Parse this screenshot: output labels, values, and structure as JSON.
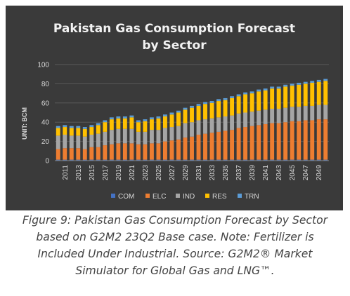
{
  "chart_data": {
    "type": "bar",
    "stacked": true,
    "title_lines": [
      "Pakistan Gas Consumption Forecast",
      "by Sector"
    ],
    "ylabel": "UNIT: BCM",
    "xlabel": "",
    "ylim": [
      0,
      100
    ],
    "yticks": [
      0,
      20,
      40,
      60,
      80,
      100
    ],
    "grid": true,
    "legend_position": "bottom",
    "categories": [
      "2010",
      "2011",
      "2012",
      "2013",
      "2014",
      "2015",
      "2016",
      "2017",
      "2018",
      "2019",
      "2020",
      "2021",
      "2022",
      "2023",
      "2024",
      "2025",
      "2026",
      "2027",
      "2028",
      "2029",
      "2030",
      "2031",
      "2032",
      "2033",
      "2034",
      "2035",
      "2036",
      "2037",
      "2038",
      "2039",
      "2040",
      "2041",
      "2042",
      "2043",
      "2044",
      "2045",
      "2046",
      "2047",
      "2048",
      "2049",
      "2050"
    ],
    "x_tick_labels": [
      "2011",
      "2013",
      "2015",
      "2017",
      "2019",
      "2021",
      "2023",
      "2025",
      "2027",
      "2029",
      "2031",
      "2033",
      "2035",
      "2037",
      "2039",
      "2041",
      "2043",
      "2045",
      "2047",
      "2049"
    ],
    "series": [
      {
        "name": "COM",
        "color": "#4472c4",
        "values": [
          1,
          1,
          1,
          1,
          1,
          1,
          1,
          1,
          1,
          1,
          1,
          1,
          1,
          1,
          1,
          1,
          1,
          1,
          1,
          1,
          1,
          1,
          1,
          1,
          1,
          1,
          1,
          1,
          1,
          1,
          1,
          1,
          1,
          1,
          1,
          1,
          1,
          1,
          1,
          1,
          1
        ]
      },
      {
        "name": "ELC",
        "color": "#ed7d31",
        "values": [
          11,
          12,
          12,
          12,
          11,
          13,
          13,
          15,
          16,
          17,
          17,
          17,
          16,
          16,
          17,
          17,
          19,
          20,
          21,
          23,
          24,
          26,
          27,
          28,
          29,
          30,
          31,
          33,
          34,
          35,
          36,
          37,
          38,
          38,
          39,
          40,
          40,
          41,
          41,
          42,
          42
        ]
      },
      {
        "name": "IND",
        "color": "#a5a5a5",
        "values": [
          14,
          14,
          13,
          13,
          13,
          13,
          14,
          14,
          15,
          15,
          15,
          15,
          13,
          13,
          14,
          14,
          14,
          14,
          14,
          15,
          15,
          15,
          15,
          15,
          15,
          15,
          15,
          15,
          15,
          15,
          15,
          15,
          15,
          15,
          15,
          15,
          15,
          15,
          15,
          15,
          15
        ]
      },
      {
        "name": "RES",
        "color": "#ffc000",
        "values": [
          8,
          8,
          8,
          8,
          8,
          8,
          9,
          10,
          11,
          11,
          11,
          12,
          10,
          11,
          11,
          12,
          12,
          13,
          14,
          14,
          15,
          15,
          16,
          16,
          17,
          17,
          18,
          18,
          19,
          19,
          20,
          20,
          21,
          21,
          22,
          22,
          23,
          23,
          24,
          24,
          25
        ]
      },
      {
        "name": "TRN",
        "color": "#5b9bd5",
        "values": [
          2,
          2,
          2,
          2,
          2,
          2,
          2,
          2,
          2,
          2,
          2,
          2,
          2,
          2,
          2,
          2,
          2,
          2,
          2,
          2,
          2,
          2,
          2,
          2,
          2,
          2,
          2,
          2,
          2,
          2,
          2,
          2,
          2,
          2,
          2,
          2,
          2,
          2,
          2,
          2,
          2
        ]
      }
    ]
  },
  "caption": "Figure 9: Pakistan Gas Consumption Forecast by Sector based on G2M2 23Q2 Base case. Note: Fertilizer is Included Under Industrial. Source: G2M2® Market Simulator for Global Gas and LNG™."
}
